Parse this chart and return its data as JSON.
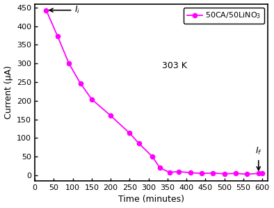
{
  "time": [
    30,
    60,
    90,
    120,
    150,
    200,
    250,
    275,
    310,
    330,
    355,
    380,
    410,
    440,
    470,
    500,
    530,
    560,
    590,
    600
  ],
  "current": [
    443,
    373,
    300,
    247,
    204,
    160,
    113,
    85,
    50,
    20,
    8,
    10,
    7,
    5,
    6,
    4,
    5,
    3,
    5,
    6
  ],
  "color": "#FF00FF",
  "marker": "o",
  "markersize": 4.5,
  "linewidth": 1.3,
  "xlim": [
    0,
    615
  ],
  "ylim": [
    -15,
    460
  ],
  "xticks": [
    0,
    50,
    100,
    150,
    200,
    250,
    300,
    350,
    400,
    450,
    500,
    550,
    600
  ],
  "yticks": [
    0,
    50,
    100,
    150,
    200,
    250,
    300,
    350,
    400,
    450
  ],
  "xlabel": "Time (minutes)",
  "ylabel": "Current (μA)",
  "legend_label": "50CA/50LiNO$_3$",
  "annotation_303K": "303 K",
  "background_color": "#ffffff",
  "tick_fontsize": 8,
  "label_fontsize": 9,
  "legend_fontsize": 8,
  "annotation_fontsize": 9
}
